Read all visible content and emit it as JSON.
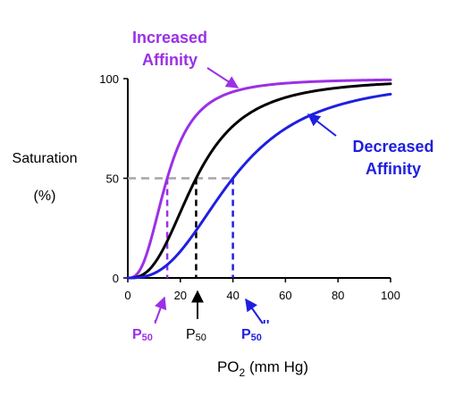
{
  "chart_data": {
    "type": "line",
    "title": "",
    "ylabel_line1": "Saturation",
    "ylabel_line2": "(%)",
    "xlabel_main": "PO",
    "xlabel_sub": "2",
    "xlabel_unit": "(mm Hg)",
    "xlim": [
      0,
      100
    ],
    "ylim": [
      0,
      100
    ],
    "xticks": [
      "0",
      "20",
      "40",
      "60",
      "80",
      "100"
    ],
    "xtick_values": [
      0,
      20,
      40,
      60,
      80,
      100
    ],
    "yticks": [
      "0",
      "50",
      "100"
    ],
    "ytick_values": [
      0,
      50,
      100
    ],
    "grid": false,
    "hill_n": 2.7,
    "series": [
      {
        "p50": 15,
        "color": "#9b30e6"
      },
      {
        "p50": 26,
        "color": "#000000"
      },
      {
        "p50": 40,
        "color": "#1f1fe0"
      }
    ],
    "reference_line": {
      "y": 50,
      "color": "#a6a6a6"
    },
    "annotations": [
      {
        "line1": "Increased",
        "line2": "Affinity",
        "color": "#9b30e6"
      },
      {
        "line1": "Decreased",
        "line2": "Affinity",
        "color": "#1f1fe0"
      }
    ],
    "p50_labels": [
      {
        "base": "P",
        "sub": "50",
        "suffix": "'",
        "color": "#9b30e6"
      },
      {
        "base": "P",
        "sub": "50",
        "suffix": "",
        "color": "#000000"
      },
      {
        "base": "P",
        "sub": "50",
        "suffix": "''",
        "color": "#1f1fe0"
      }
    ]
  }
}
